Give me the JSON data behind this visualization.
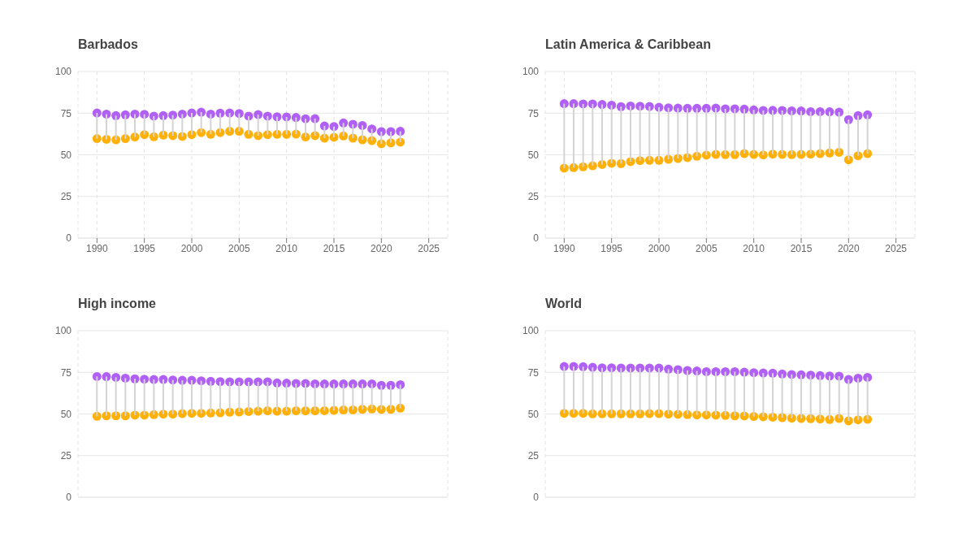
{
  "chart_data": [
    {
      "type": "scatter",
      "title": "Barbados",
      "x": [
        1990,
        1991,
        1992,
        1993,
        1994,
        1995,
        1996,
        1997,
        1998,
        1999,
        2000,
        2001,
        2002,
        2003,
        2004,
        2005,
        2006,
        2007,
        2008,
        2009,
        2010,
        2011,
        2012,
        2013,
        2014,
        2015,
        2016,
        2017,
        2018,
        2019,
        2020,
        2021,
        2022
      ],
      "xlim": [
        1988,
        2027
      ],
      "xticks": [
        1990,
        1995,
        2000,
        2005,
        2010,
        2015,
        2020,
        2025
      ],
      "ylim": [
        0,
        100
      ],
      "yticks": [
        0,
        25,
        50,
        75,
        100
      ],
      "grid": true,
      "marker": "circle",
      "series": [
        {
          "color": "#ffb10a",
          "values": [
            59.7,
            59.3,
            59.0,
            59.7,
            60.7,
            62.1,
            60.8,
            61.8,
            61.5,
            61.0,
            62.1,
            63.3,
            62.3,
            63.3,
            64.1,
            64.1,
            62.3,
            61.5,
            62.1,
            62.3,
            62.3,
            62.4,
            60.7,
            61.5,
            60.0,
            60.5,
            61.3,
            60.0,
            59.0,
            58.5,
            56.6,
            57.2,
            57.6
          ]
        },
        {
          "color": "#b160f5",
          "values": [
            75.1,
            74.4,
            73.5,
            74.0,
            74.4,
            74.3,
            73.2,
            73.5,
            73.8,
            74.4,
            75.1,
            75.6,
            74.4,
            75.0,
            75.1,
            74.8,
            73.2,
            74.1,
            73.2,
            72.8,
            72.7,
            72.4,
            71.6,
            71.7,
            67.3,
            67.0,
            69.1,
            68.3,
            67.6,
            65.5,
            63.9,
            63.9,
            64.1
          ],
          "errors": [
            [
              59.7,
              75.1
            ],
            [
              59.3,
              74.4
            ],
            [
              59.0,
              73.5
            ],
            [
              59.7,
              74.0
            ],
            [
              60.7,
              74.4
            ],
            [
              62.1,
              74.3
            ],
            [
              60.8,
              73.2
            ],
            [
              61.8,
              73.5
            ],
            [
              61.5,
              73.8
            ],
            [
              61.0,
              74.4
            ],
            [
              62.1,
              75.1
            ],
            [
              63.3,
              75.6
            ],
            [
              62.3,
              74.4
            ],
            [
              63.3,
              75.0
            ],
            [
              64.1,
              75.1
            ],
            [
              64.1,
              74.8
            ],
            [
              62.3,
              73.2
            ],
            [
              61.5,
              74.1
            ],
            [
              62.1,
              73.2
            ],
            [
              62.3,
              72.8
            ],
            [
              62.3,
              72.7
            ],
            [
              62.4,
              72.4
            ],
            [
              60.7,
              71.6
            ],
            [
              61.5,
              71.7
            ],
            [
              60.0,
              67.3
            ],
            [
              60.5,
              67.0
            ],
            [
              61.3,
              69.1
            ],
            [
              60.0,
              68.3
            ],
            [
              59.0,
              67.6
            ],
            [
              58.5,
              65.5
            ],
            [
              56.6,
              63.9
            ],
            [
              57.2,
              63.9
            ],
            [
              57.6,
              64.1
            ]
          ]
        }
      ]
    },
    {
      "type": "scatter",
      "title": "Latin America & Caribbean",
      "x": [
        1990,
        1991,
        1992,
        1993,
        1994,
        1995,
        1996,
        1997,
        1998,
        1999,
        2000,
        2001,
        2002,
        2003,
        2004,
        2005,
        2006,
        2007,
        2008,
        2009,
        2010,
        2011,
        2012,
        2013,
        2014,
        2015,
        2016,
        2017,
        2018,
        2019,
        2020,
        2021,
        2022
      ],
      "xlim": [
        1988,
        2027
      ],
      "xticks": [
        1990,
        1995,
        2000,
        2005,
        2010,
        2015,
        2020,
        2025
      ],
      "ylim": [
        0,
        100
      ],
      "yticks": [
        0,
        25,
        50,
        75,
        100
      ],
      "grid": true,
      "marker": "circle",
      "series": [
        {
          "color": "#ffb10a",
          "values": [
            42.0,
            42.3,
            42.8,
            43.4,
            44.2,
            44.9,
            44.7,
            45.9,
            46.5,
            46.7,
            46.7,
            47.3,
            47.8,
            48.3,
            49.1,
            49.8,
            50.2,
            50.1,
            50.1,
            50.7,
            50.2,
            49.9,
            50.4,
            50.2,
            50.1,
            50.2,
            50.4,
            50.7,
            51.1,
            51.5,
            47.0,
            49.4,
            50.7
          ]
        },
        {
          "color": "#b160f5",
          "values": [
            80.7,
            80.7,
            80.5,
            80.5,
            80.2,
            79.8,
            78.9,
            79.3,
            79.2,
            79.0,
            78.5,
            78.2,
            78.0,
            77.9,
            77.9,
            77.9,
            78.0,
            77.6,
            77.6,
            77.4,
            76.9,
            76.6,
            76.7,
            76.6,
            76.4,
            76.3,
            75.9,
            75.9,
            75.8,
            75.6,
            71.1,
            73.5,
            74.0
          ],
          "errors": [
            [
              42.0,
              80.7
            ],
            [
              42.3,
              80.7
            ],
            [
              42.8,
              80.5
            ],
            [
              43.4,
              80.5
            ],
            [
              44.2,
              80.2
            ],
            [
              44.9,
              79.8
            ],
            [
              44.7,
              78.9
            ],
            [
              45.9,
              79.3
            ],
            [
              46.5,
              79.2
            ],
            [
              46.7,
              79.0
            ],
            [
              46.7,
              78.5
            ],
            [
              47.3,
              78.2
            ],
            [
              47.8,
              78.0
            ],
            [
              48.3,
              77.9
            ],
            [
              49.1,
              77.9
            ],
            [
              49.8,
              77.9
            ],
            [
              50.2,
              78.0
            ],
            [
              50.1,
              77.6
            ],
            [
              50.1,
              77.6
            ],
            [
              50.7,
              77.4
            ],
            [
              50.2,
              76.9
            ],
            [
              49.9,
              76.6
            ],
            [
              50.4,
              76.7
            ],
            [
              50.2,
              76.6
            ],
            [
              50.1,
              76.4
            ],
            [
              50.2,
              76.3
            ],
            [
              50.4,
              75.9
            ],
            [
              50.7,
              75.9
            ],
            [
              51.1,
              75.8
            ],
            [
              51.5,
              75.6
            ],
            [
              47.0,
              71.1
            ],
            [
              49.4,
              73.5
            ],
            [
              50.7,
              74.0
            ]
          ]
        }
      ]
    },
    {
      "type": "scatter",
      "title": "High income",
      "x": [
        1990,
        1991,
        1992,
        1993,
        1994,
        1995,
        1996,
        1997,
        1998,
        1999,
        2000,
        2001,
        2002,
        2003,
        2004,
        2005,
        2006,
        2007,
        2008,
        2009,
        2010,
        2011,
        2012,
        2013,
        2014,
        2015,
        2016,
        2017,
        2018,
        2019,
        2020,
        2021,
        2022
      ],
      "xlim": [
        1988,
        2027
      ],
      "xticks": [
        1990,
        1995,
        2000,
        2005,
        2010,
        2015,
        2020,
        2025
      ],
      "ylim": [
        0,
        100
      ],
      "yticks": [
        0,
        25,
        50,
        75,
        100
      ],
      "grid": true,
      "marker": "circle",
      "tick_labels": "y",
      "series": [
        {
          "color": "#ffb10a",
          "values": [
            48.6,
            48.9,
            48.9,
            48.9,
            49.3,
            49.3,
            49.6,
            49.9,
            49.9,
            50.2,
            50.4,
            50.4,
            50.6,
            50.7,
            51.1,
            51.2,
            51.5,
            51.7,
            51.9,
            51.7,
            51.7,
            51.9,
            51.9,
            51.9,
            52.0,
            52.2,
            52.4,
            52.5,
            52.8,
            53.0,
            52.7,
            52.8,
            53.5
          ]
        },
        {
          "color": "#b160f5",
          "values": [
            72.5,
            72.4,
            72.0,
            71.5,
            71.1,
            70.9,
            70.7,
            70.7,
            70.4,
            70.2,
            70.2,
            69.9,
            69.6,
            69.4,
            69.3,
            69.3,
            69.3,
            69.3,
            69.3,
            68.6,
            68.5,
            68.3,
            68.3,
            68.1,
            68.0,
            68.0,
            68.0,
            68.0,
            68.0,
            68.1,
            67.2,
            67.2,
            67.6
          ],
          "errors": [
            [
              48.6,
              72.5
            ],
            [
              48.9,
              72.4
            ],
            [
              48.9,
              72.0
            ],
            [
              48.9,
              71.5
            ],
            [
              49.3,
              71.1
            ],
            [
              49.3,
              70.9
            ],
            [
              49.6,
              70.7
            ],
            [
              49.9,
              70.7
            ],
            [
              49.9,
              70.4
            ],
            [
              50.2,
              70.2
            ],
            [
              50.4,
              70.2
            ],
            [
              50.4,
              69.9
            ],
            [
              50.6,
              69.6
            ],
            [
              50.7,
              69.4
            ],
            [
              51.1,
              69.3
            ],
            [
              51.2,
              69.3
            ],
            [
              51.5,
              69.3
            ],
            [
              51.7,
              69.3
            ],
            [
              51.9,
              69.3
            ],
            [
              51.7,
              68.6
            ],
            [
              51.7,
              68.5
            ],
            [
              51.9,
              68.3
            ],
            [
              51.9,
              68.3
            ],
            [
              51.9,
              68.1
            ],
            [
              52.0,
              68.0
            ],
            [
              52.2,
              68.0
            ],
            [
              52.4,
              68.0
            ],
            [
              52.5,
              68.0
            ],
            [
              52.8,
              68.0
            ],
            [
              53.0,
              68.1
            ],
            [
              52.7,
              67.2
            ],
            [
              52.8,
              67.2
            ],
            [
              53.5,
              67.6
            ]
          ]
        }
      ]
    },
    {
      "type": "scatter",
      "title": "World",
      "x": [
        1990,
        1991,
        1992,
        1993,
        1994,
        1995,
        1996,
        1997,
        1998,
        1999,
        2000,
        2001,
        2002,
        2003,
        2004,
        2005,
        2006,
        2007,
        2008,
        2009,
        2010,
        2011,
        2012,
        2013,
        2014,
        2015,
        2016,
        2017,
        2018,
        2019,
        2020,
        2021,
        2022
      ],
      "xlim": [
        1988,
        2027
      ],
      "xticks": [
        1990,
        1995,
        2000,
        2005,
        2010,
        2015,
        2020,
        2025
      ],
      "ylim": [
        0,
        100
      ],
      "yticks": [
        0,
        25,
        50,
        75,
        100
      ],
      "grid": true,
      "marker": "circle",
      "tick_labels": "y",
      "series": [
        {
          "color": "#ffb10a",
          "values": [
            50.4,
            50.4,
            50.4,
            50.1,
            50.1,
            50.1,
            50.1,
            50.1,
            50.1,
            50.2,
            50.2,
            49.9,
            49.8,
            49.6,
            49.4,
            49.4,
            49.3,
            49.1,
            48.9,
            48.8,
            48.5,
            48.3,
            48.1,
            47.8,
            47.5,
            47.3,
            47.2,
            47.0,
            46.7,
            47.3,
            45.9,
            46.5,
            46.8
          ]
        },
        {
          "color": "#b160f5",
          "values": [
            78.5,
            78.5,
            78.4,
            78.0,
            77.7,
            77.7,
            77.6,
            77.6,
            77.6,
            77.6,
            77.6,
            76.9,
            76.6,
            76.1,
            75.8,
            75.4,
            75.4,
            75.4,
            75.4,
            75.1,
            74.8,
            74.6,
            74.5,
            74.0,
            73.7,
            73.5,
            73.3,
            73.0,
            72.8,
            72.7,
            70.7,
            71.5,
            72.0
          ],
          "errors": [
            [
              50.4,
              78.5
            ],
            [
              50.4,
              78.5
            ],
            [
              50.4,
              78.4
            ],
            [
              50.1,
              78.0
            ],
            [
              50.1,
              77.7
            ],
            [
              50.1,
              77.7
            ],
            [
              50.1,
              77.6
            ],
            [
              50.1,
              77.6
            ],
            [
              50.1,
              77.6
            ],
            [
              50.2,
              77.6
            ],
            [
              50.2,
              77.6
            ],
            [
              49.9,
              76.9
            ],
            [
              49.8,
              76.6
            ],
            [
              49.6,
              76.1
            ],
            [
              49.4,
              75.8
            ],
            [
              49.4,
              75.4
            ],
            [
              49.3,
              75.4
            ],
            [
              49.1,
              75.4
            ],
            [
              48.9,
              75.4
            ],
            [
              48.8,
              75.1
            ],
            [
              48.5,
              74.8
            ],
            [
              48.3,
              74.6
            ],
            [
              48.1,
              74.5
            ],
            [
              47.8,
              74.0
            ],
            [
              47.5,
              73.7
            ],
            [
              47.3,
              73.5
            ],
            [
              47.2,
              73.3
            ],
            [
              47.0,
              73.0
            ],
            [
              46.7,
              72.8
            ],
            [
              47.3,
              72.7
            ],
            [
              45.9,
              70.7
            ],
            [
              46.5,
              71.5
            ],
            [
              46.8,
              72.0
            ]
          ]
        }
      ]
    }
  ]
}
